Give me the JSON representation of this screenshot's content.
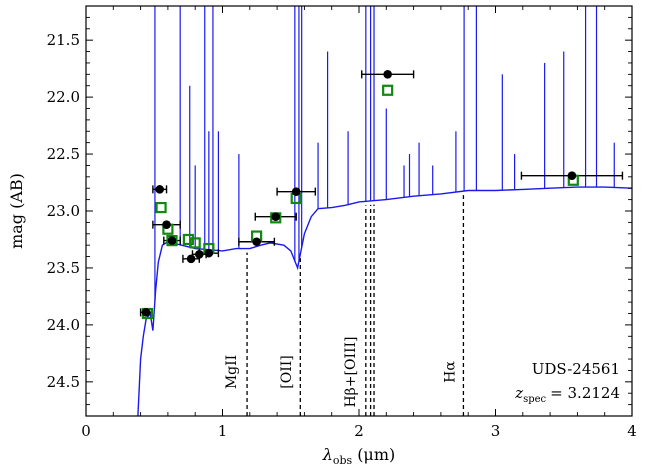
{
  "chart_data": {
    "type": "scatter",
    "object_name": "UDS-24561",
    "redshift_label": "z_spec = 3.2124",
    "redshift_symbol": "z",
    "redshift_sub": "spec",
    "redshift_value": "= 3.2124",
    "xlabel": "λobs (μm)",
    "xlabel_symbol": "λ",
    "xlabel_sub": "obs",
    "xlabel_unit": "(μm)",
    "ylabel": "mag (AB)",
    "xlim": [
      0,
      4
    ],
    "ylim": [
      24.8,
      21.2
    ],
    "y_inverted": true,
    "x_ticks": [
      0,
      1,
      2,
      3,
      4
    ],
    "x_tick_labels": [
      "0",
      "1",
      "2",
      "3",
      "4"
    ],
    "y_ticks": [
      21.5,
      22.0,
      22.5,
      23.0,
      23.5,
      24.0,
      24.5
    ],
    "y_tick_labels": [
      "21.5",
      "22.0",
      "22.5",
      "23.0",
      "23.5",
      "24.0",
      "24.5"
    ],
    "emission_lines": [
      {
        "label": "MgII",
        "x": 1.18,
        "style": "dashed"
      },
      {
        "label": "[OII]",
        "x": 1.57,
        "style": "dashed"
      },
      {
        "label": "Hβ+[OIII]",
        "x": 2.05,
        "style": "dashed"
      },
      {
        "label": "Hβ+[OIII]",
        "x": 2.085,
        "style": "dashed"
      },
      {
        "label": "Hβ+[OIII]",
        "x": 2.11,
        "style": "dashed"
      },
      {
        "label": "Hα",
        "x": 2.765,
        "style": "dashed"
      }
    ],
    "emission_line_labels": [
      {
        "text": "MgII",
        "x": 1.1
      },
      {
        "text": "[OII]",
        "x": 1.5
      },
      {
        "text": "Hβ+[OIII]",
        "x": 1.97
      },
      {
        "text": "Hα",
        "x": 2.7
      }
    ],
    "series": [
      {
        "name": "observed photometry",
        "marker": "circle",
        "color": "#000000",
        "points": [
          {
            "x": 0.44,
            "y": 23.89,
            "xerr": 0.04
          },
          {
            "x": 0.54,
            "y": 22.81,
            "xerr": 0.05
          },
          {
            "x": 0.59,
            "y": 23.12,
            "xerr": 0.1
          },
          {
            "x": 0.63,
            "y": 23.26,
            "xerr": 0.06
          },
          {
            "x": 0.77,
            "y": 23.42,
            "xerr": 0.06
          },
          {
            "x": 0.83,
            "y": 23.38,
            "xerr": 0.05
          },
          {
            "x": 0.9,
            "y": 23.37,
            "xerr": 0.07
          },
          {
            "x": 1.25,
            "y": 23.27,
            "xerr": 0.13
          },
          {
            "x": 1.39,
            "y": 23.05,
            "xerr": 0.15
          },
          {
            "x": 1.54,
            "y": 22.83,
            "xerr": 0.14
          },
          {
            "x": 2.21,
            "y": 21.8,
            "xerr": 0.19
          },
          {
            "x": 3.56,
            "y": 22.69,
            "xerr": 0.37
          }
        ]
      },
      {
        "name": "model photometry",
        "marker": "square",
        "color": "#118811",
        "points": [
          {
            "x": 0.45,
            "y": 23.9
          },
          {
            "x": 0.55,
            "y": 22.97
          },
          {
            "x": 0.6,
            "y": 23.16
          },
          {
            "x": 0.63,
            "y": 23.26
          },
          {
            "x": 0.75,
            "y": 23.25
          },
          {
            "x": 0.8,
            "y": 23.28
          },
          {
            "x": 0.9,
            "y": 23.33
          },
          {
            "x": 1.25,
            "y": 23.22
          },
          {
            "x": 1.39,
            "y": 23.06
          },
          {
            "x": 1.54,
            "y": 22.89
          },
          {
            "x": 2.21,
            "y": 21.94
          },
          {
            "x": 3.57,
            "y": 22.73
          }
        ]
      }
    ],
    "model_spectrum": {
      "color": "#1a1aee",
      "continuum": [
        [
          0.38,
          24.8
        ],
        [
          0.4,
          24.3
        ],
        [
          0.42,
          24.1
        ],
        [
          0.44,
          23.95
        ],
        [
          0.47,
          23.9
        ],
        [
          0.49,
          24.05
        ],
        [
          0.51,
          23.7
        ],
        [
          0.53,
          23.45
        ],
        [
          0.56,
          23.3
        ],
        [
          0.6,
          23.27
        ],
        [
          0.7,
          23.3
        ],
        [
          0.8,
          23.33
        ],
        [
          0.9,
          23.34
        ],
        [
          1.0,
          23.35
        ],
        [
          1.1,
          23.33
        ],
        [
          1.2,
          23.33
        ],
        [
          1.28,
          23.3
        ],
        [
          1.35,
          23.28
        ],
        [
          1.45,
          23.3
        ],
        [
          1.5,
          23.35
        ],
        [
          1.55,
          23.5
        ],
        [
          1.6,
          23.2
        ],
        [
          1.65,
          23.05
        ],
        [
          1.7,
          22.98
        ],
        [
          1.8,
          22.97
        ],
        [
          1.9,
          22.95
        ],
        [
          2.0,
          22.92
        ],
        [
          2.2,
          22.9
        ],
        [
          2.4,
          22.87
        ],
        [
          2.6,
          22.85
        ],
        [
          2.8,
          22.82
        ],
        [
          3.0,
          22.82
        ],
        [
          3.2,
          22.81
        ],
        [
          3.4,
          22.8
        ],
        [
          3.6,
          22.79
        ],
        [
          3.8,
          22.79
        ],
        [
          4.0,
          22.8
        ]
      ],
      "spikes": [
        [
          0.505,
          21.2
        ],
        [
          0.69,
          21.2
        ],
        [
          0.76,
          21.9
        ],
        [
          0.8,
          22.6
        ],
        [
          0.87,
          21.2
        ],
        [
          0.9,
          22.3
        ],
        [
          0.93,
          21.2
        ],
        [
          0.97,
          22.3
        ],
        [
          1.12,
          22.5
        ],
        [
          1.53,
          21.2
        ],
        [
          1.56,
          21.2
        ],
        [
          1.58,
          21.2
        ],
        [
          1.7,
          22.4
        ],
        [
          1.77,
          21.6
        ],
        [
          1.92,
          22.3
        ],
        [
          2.05,
          21.2
        ],
        [
          2.085,
          21.2
        ],
        [
          2.11,
          21.2
        ],
        [
          2.2,
          22.1
        ],
        [
          2.33,
          22.6
        ],
        [
          2.37,
          22.5
        ],
        [
          2.44,
          22.4
        ],
        [
          2.54,
          22.6
        ],
        [
          2.71,
          22.3
        ],
        [
          2.77,
          21.2
        ],
        [
          2.86,
          21.2
        ],
        [
          3.05,
          21.8
        ],
        [
          3.14,
          22.5
        ],
        [
          3.36,
          21.7
        ],
        [
          3.5,
          21.6
        ],
        [
          3.66,
          21.2
        ],
        [
          3.74,
          21.2
        ],
        [
          3.87,
          22.4
        ]
      ]
    }
  }
}
